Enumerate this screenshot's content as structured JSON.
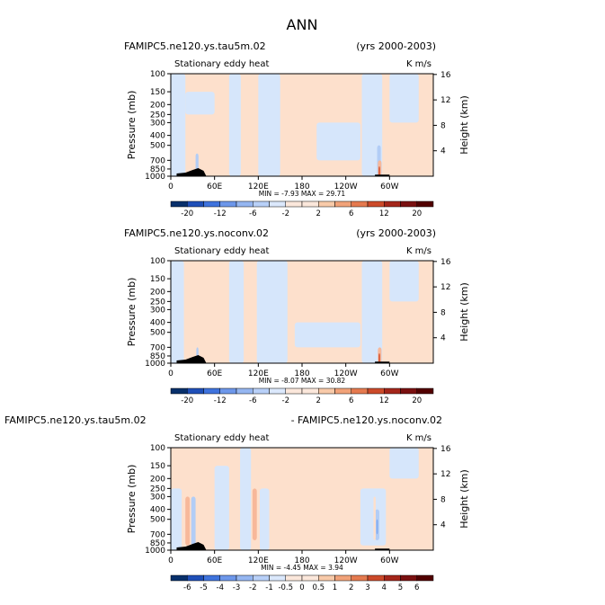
{
  "page_title": "ANN",
  "colors": {
    "pos1": "#fde0cc",
    "pos2": "#f7b89a",
    "pos3": "#ec8660",
    "pos4": "#d6522f",
    "neg1": "#d6e6fb",
    "neg2": "#b2cdf6",
    "neg3": "#7fa8ee",
    "neg4": "#3f73dd",
    "topography": "#000000"
  },
  "chart_data": [
    {
      "type": "heatmap",
      "case_label": "FAMIPC5.ne120.ys.tau5m.02",
      "years_label": "(yrs 2000-2003)",
      "subtitle": "Stationary eddy heat",
      "units": "K m/s",
      "ylabel": "Pressure (mb)",
      "ylabel_right": "Height (km)",
      "x_ticks": [
        "0",
        "60E",
        "120E",
        "180",
        "120W",
        "60W"
      ],
      "x_range": [
        0,
        360
      ],
      "y_ticks": [
        "100",
        "150",
        "200",
        "250",
        "300",
        "400",
        "500",
        "700",
        "850",
        "1000"
      ],
      "y_ticks_right": [
        "16",
        "12",
        "8",
        "4"
      ],
      "stats_label": "MIN =  -7.93   MAX =  29.71",
      "min": -7.93,
      "max": 29.71,
      "colorbar_labels": [
        "-20",
        "-12",
        "-6",
        "-2",
        "2",
        "6",
        "12",
        "20"
      ],
      "colorbar_levels": [
        -20,
        -16,
        -12,
        -8,
        -6,
        -4,
        -2,
        0,
        2,
        4,
        6,
        8,
        12,
        16,
        20
      ],
      "features": [
        {
          "kind": "neg",
          "level": 1,
          "lon": [
            0,
            20
          ],
          "p": [
            100,
            1000
          ]
        },
        {
          "kind": "neg",
          "level": 1,
          "lon": [
            80,
            96
          ],
          "p": [
            100,
            1000
          ]
        },
        {
          "kind": "neg",
          "level": 1,
          "lon": [
            120,
            150
          ],
          "p": [
            100,
            1000
          ]
        },
        {
          "kind": "neg",
          "level": 1,
          "lon": [
            200,
            260
          ],
          "p": [
            300,
            700
          ]
        },
        {
          "kind": "neg",
          "level": 1,
          "lon": [
            262,
            290
          ],
          "p": [
            100,
            1000
          ]
        },
        {
          "kind": "neg",
          "level": 1,
          "lon": [
            300,
            340
          ],
          "p": [
            100,
            300
          ]
        },
        {
          "kind": "neg",
          "level": 1,
          "lon": [
            20,
            60
          ],
          "p": [
            150,
            250
          ]
        },
        {
          "kind": "neg",
          "level": 2,
          "lon": [
            283,
            288
          ],
          "p": [
            500,
            1000
          ]
        },
        {
          "kind": "pos",
          "level": 2,
          "lon": [
            284,
            289
          ],
          "p": [
            700,
            1000
          ]
        },
        {
          "kind": "pos",
          "level": 4,
          "lon": [
            285,
            287
          ],
          "p": [
            800,
            1000
          ]
        },
        {
          "kind": "neg",
          "level": 2,
          "lon": [
            34,
            38
          ],
          "p": [
            600,
            1000
          ]
        }
      ]
    },
    {
      "type": "heatmap",
      "case_label": "FAMIPC5.ne120.ys.noconv.02",
      "years_label": "(yrs 2000-2003)",
      "subtitle": "Stationary eddy heat",
      "units": "K m/s",
      "ylabel": "Pressure (mb)",
      "ylabel_right": "Height (km)",
      "x_ticks": [
        "0",
        "60E",
        "120E",
        "180",
        "120W",
        "60W"
      ],
      "x_range": [
        0,
        360
      ],
      "y_ticks": [
        "100",
        "150",
        "200",
        "250",
        "300",
        "400",
        "500",
        "700",
        "850",
        "1000"
      ],
      "y_ticks_right": [
        "16",
        "12",
        "8",
        "4"
      ],
      "stats_label": "MIN =  -8.07   MAX =  30.82",
      "min": -8.07,
      "max": 30.82,
      "colorbar_labels": [
        "-20",
        "-12",
        "-6",
        "-2",
        "2",
        "6",
        "12",
        "20"
      ],
      "colorbar_levels": [
        -20,
        -16,
        -12,
        -8,
        -6,
        -4,
        -2,
        0,
        2,
        4,
        6,
        8,
        12,
        16,
        20
      ],
      "features": [
        {
          "kind": "neg",
          "level": 1,
          "lon": [
            0,
            18
          ],
          "p": [
            100,
            1000
          ]
        },
        {
          "kind": "neg",
          "level": 1,
          "lon": [
            80,
            100
          ],
          "p": [
            100,
            1000
          ]
        },
        {
          "kind": "neg",
          "level": 1,
          "lon": [
            118,
            160
          ],
          "p": [
            100,
            1000
          ]
        },
        {
          "kind": "neg",
          "level": 1,
          "lon": [
            170,
            260
          ],
          "p": [
            400,
            700
          ]
        },
        {
          "kind": "neg",
          "level": 1,
          "lon": [
            262,
            290
          ],
          "p": [
            100,
            1000
          ]
        },
        {
          "kind": "neg",
          "level": 1,
          "lon": [
            300,
            340
          ],
          "p": [
            100,
            250
          ]
        },
        {
          "kind": "pos",
          "level": 2,
          "lon": [
            284,
            289
          ],
          "p": [
            700,
            1000
          ]
        },
        {
          "kind": "pos",
          "level": 4,
          "lon": [
            285,
            287
          ],
          "p": [
            800,
            1000
          ]
        },
        {
          "kind": "neg",
          "level": 2,
          "lon": [
            35,
            38
          ],
          "p": [
            700,
            1000
          ]
        }
      ]
    },
    {
      "type": "heatmap",
      "case_label": "FAMIPC5.ne120.ys.tau5m.02",
      "years_label": "- FAMIPC5.ne120.ys.noconv.02",
      "subtitle": "Stationary eddy heat",
      "units": "K m/s",
      "ylabel": "Pressure (mb)",
      "ylabel_right": "Height (km)",
      "x_ticks": [
        "0",
        "60E",
        "120E",
        "180",
        "120W",
        "60W"
      ],
      "x_range": [
        0,
        360
      ],
      "y_ticks": [
        "100",
        "150",
        "200",
        "250",
        "300",
        "400",
        "500",
        "700",
        "850",
        "1000"
      ],
      "y_ticks_right": [
        "16",
        "12",
        "8",
        "4"
      ],
      "stats_label": "MIN =  -4.45   MAX =  3.94",
      "min": -4.45,
      "max": 3.94,
      "colorbar_labels": [
        "-6",
        "-5",
        "-4",
        "-3",
        "-2",
        "-1",
        "-0.5",
        "0",
        "0.5",
        "1",
        "2",
        "3",
        "4",
        "5",
        "6"
      ],
      "colorbar_levels": [
        -6,
        -5,
        -4,
        -3,
        -2,
        -1,
        -0.5,
        0,
        0.5,
        1,
        2,
        3,
        4,
        5,
        6
      ],
      "features": [
        {
          "kind": "neg",
          "level": 1,
          "lon": [
            0,
            15
          ],
          "p": [
            250,
            1000
          ]
        },
        {
          "kind": "pos",
          "level": 2,
          "lon": [
            20,
            26
          ],
          "p": [
            300,
            900
          ]
        },
        {
          "kind": "neg",
          "level": 2,
          "lon": [
            28,
            34
          ],
          "p": [
            300,
            900
          ]
        },
        {
          "kind": "neg",
          "level": 1,
          "lon": [
            60,
            80
          ],
          "p": [
            150,
            1000
          ]
        },
        {
          "kind": "neg",
          "level": 1,
          "lon": [
            95,
            110
          ],
          "p": [
            100,
            1000
          ]
        },
        {
          "kind": "pos",
          "level": 2,
          "lon": [
            112,
            118
          ],
          "p": [
            250,
            800
          ]
        },
        {
          "kind": "neg",
          "level": 1,
          "lon": [
            122,
            135
          ],
          "p": [
            250,
            1000
          ]
        },
        {
          "kind": "neg",
          "level": 1,
          "lon": [
            260,
            295
          ],
          "p": [
            250,
            900
          ]
        },
        {
          "kind": "neg",
          "level": 2,
          "lon": [
            280,
            286
          ],
          "p": [
            400,
            800
          ]
        },
        {
          "kind": "neg",
          "level": 3,
          "lon": [
            282,
            284
          ],
          "p": [
            500,
            700
          ]
        },
        {
          "kind": "pos",
          "level": 1,
          "lon": [
            278,
            281
          ],
          "p": [
            300,
            800
          ]
        },
        {
          "kind": "neg",
          "level": 1,
          "lon": [
            300,
            340
          ],
          "p": [
            100,
            200
          ]
        }
      ]
    }
  ]
}
